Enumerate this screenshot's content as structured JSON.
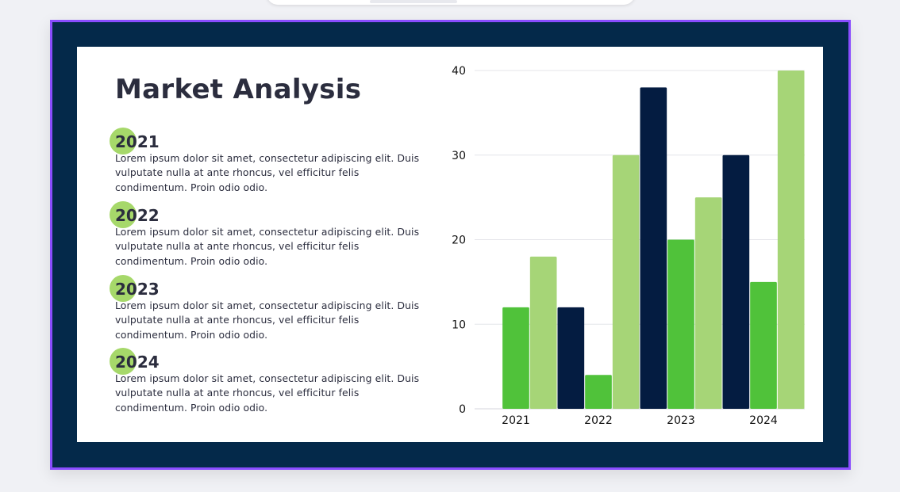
{
  "slide": {
    "title": "Market Analysis",
    "entries": [
      {
        "year": "2021",
        "text": "Lorem ipsum dolor sit amet, consectetur adipiscing elit. Duis vulputate nulla at ante rhoncus, vel efficitur felis condimentum. Proin odio odio."
      },
      {
        "year": "2022",
        "text": "Lorem ipsum dolor sit amet, consectetur adipiscing elit. Duis vulputate nulla at ante rhoncus, vel efficitur felis condimentum. Proin odio odio."
      },
      {
        "year": "2023",
        "text": "Lorem ipsum dolor sit amet, consectetur adipiscing elit. Duis vulputate nulla at ante rhoncus, vel efficitur felis condimentum. Proin odio odio."
      },
      {
        "year": "2024",
        "text": "Lorem ipsum dolor sit amet, consectetur adipiscing elit. Duis vulputate nulla at ante rhoncus, vel efficitur felis condimentum. Proin odio odio."
      }
    ]
  },
  "colors": {
    "frame_background": "#04294a",
    "frame_border": "#8a4dff",
    "card_background": "#ffffff",
    "text": "#2b2d3e",
    "accent_dot": "#a6d86a",
    "series_navy": "#041c41",
    "series_green": "#50c23a",
    "series_light_green": "#a6d577"
  },
  "chart_data": {
    "type": "bar",
    "categories": [
      "2021",
      "2022",
      "2023",
      "2024"
    ],
    "series": [
      {
        "color": "#041c41",
        "values": [
          0,
          12,
          38,
          30
        ]
      },
      {
        "color": "#50c23a",
        "values": [
          12,
          4,
          20,
          15
        ]
      },
      {
        "color": "#a6d577",
        "values": [
          18,
          30,
          25,
          40
        ]
      }
    ],
    "ylim": [
      0,
      40
    ],
    "yticks": [
      "0",
      "10",
      "20",
      "30",
      "40"
    ],
    "grid": true,
    "legend": "none"
  }
}
